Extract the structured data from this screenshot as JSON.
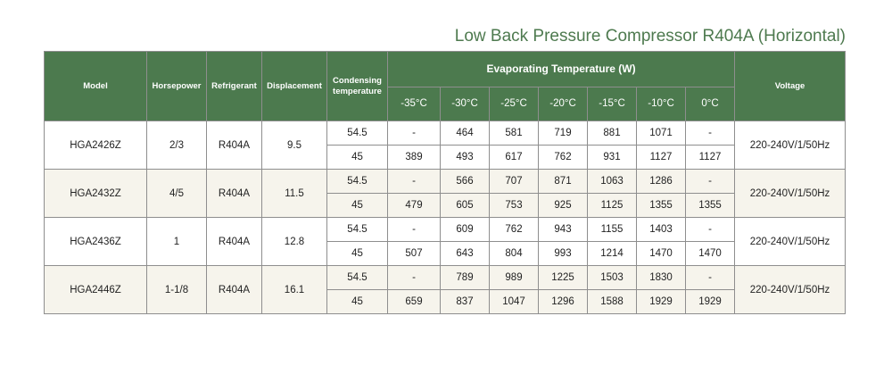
{
  "title": "Low Back Pressure Compressor R404A (Horizontal)",
  "headers": {
    "model": "Model",
    "horsepower": "Horsepower",
    "refrigerant": "Refrigerant",
    "displacement": "Displacement",
    "condensing_line1": "Condensing",
    "condensing_line2": "temperature",
    "evaporating": "Evaporating Temperature (W)",
    "voltage": "Voltage",
    "temps": [
      "-35°C",
      "-30°C",
      "-25°C",
      "-20°C",
      "-15°C",
      "-10°C",
      "0°C"
    ]
  },
  "rows": [
    {
      "model": "HGA2426Z",
      "horsepower": "2/3",
      "refrigerant": "R404A",
      "displacement": "9.5",
      "voltage": "220-240V/1/50Hz",
      "conditions": [
        {
          "condensing": "54.5",
          "values": [
            "-",
            "464",
            "581",
            "719",
            "881",
            "1071",
            "-"
          ]
        },
        {
          "condensing": "45",
          "values": [
            "389",
            "493",
            "617",
            "762",
            "931",
            "1127",
            "1127"
          ]
        }
      ]
    },
    {
      "model": "HGA2432Z",
      "horsepower": "4/5",
      "refrigerant": "R404A",
      "displacement": "11.5",
      "voltage": "220-240V/1/50Hz",
      "conditions": [
        {
          "condensing": "54.5",
          "values": [
            "-",
            "566",
            "707",
            "871",
            "1063",
            "1286",
            "-"
          ]
        },
        {
          "condensing": "45",
          "values": [
            "479",
            "605",
            "753",
            "925",
            "1125",
            "1355",
            "1355"
          ]
        }
      ]
    },
    {
      "model": "HGA2436Z",
      "horsepower": "1",
      "refrigerant": "R404A",
      "displacement": "12.8",
      "voltage": "220-240V/1/50Hz",
      "conditions": [
        {
          "condensing": "54.5",
          "values": [
            "-",
            "609",
            "762",
            "943",
            "1155",
            "1403",
            "-"
          ]
        },
        {
          "condensing": "45",
          "values": [
            "507",
            "643",
            "804",
            "993",
            "1214",
            "1470",
            "1470"
          ]
        }
      ]
    },
    {
      "model": "HGA2446Z",
      "horsepower": "1-1/8",
      "refrigerant": "R404A",
      "displacement": "16.1",
      "voltage": "220-240V/1/50Hz",
      "conditions": [
        {
          "condensing": "54.5",
          "values": [
            "-",
            "789",
            "989",
            "1225",
            "1503",
            "1830",
            "-"
          ]
        },
        {
          "condensing": "45",
          "values": [
            "659",
            "837",
            "1047",
            "1296",
            "1588",
            "1929",
            "1929"
          ]
        }
      ]
    }
  ]
}
